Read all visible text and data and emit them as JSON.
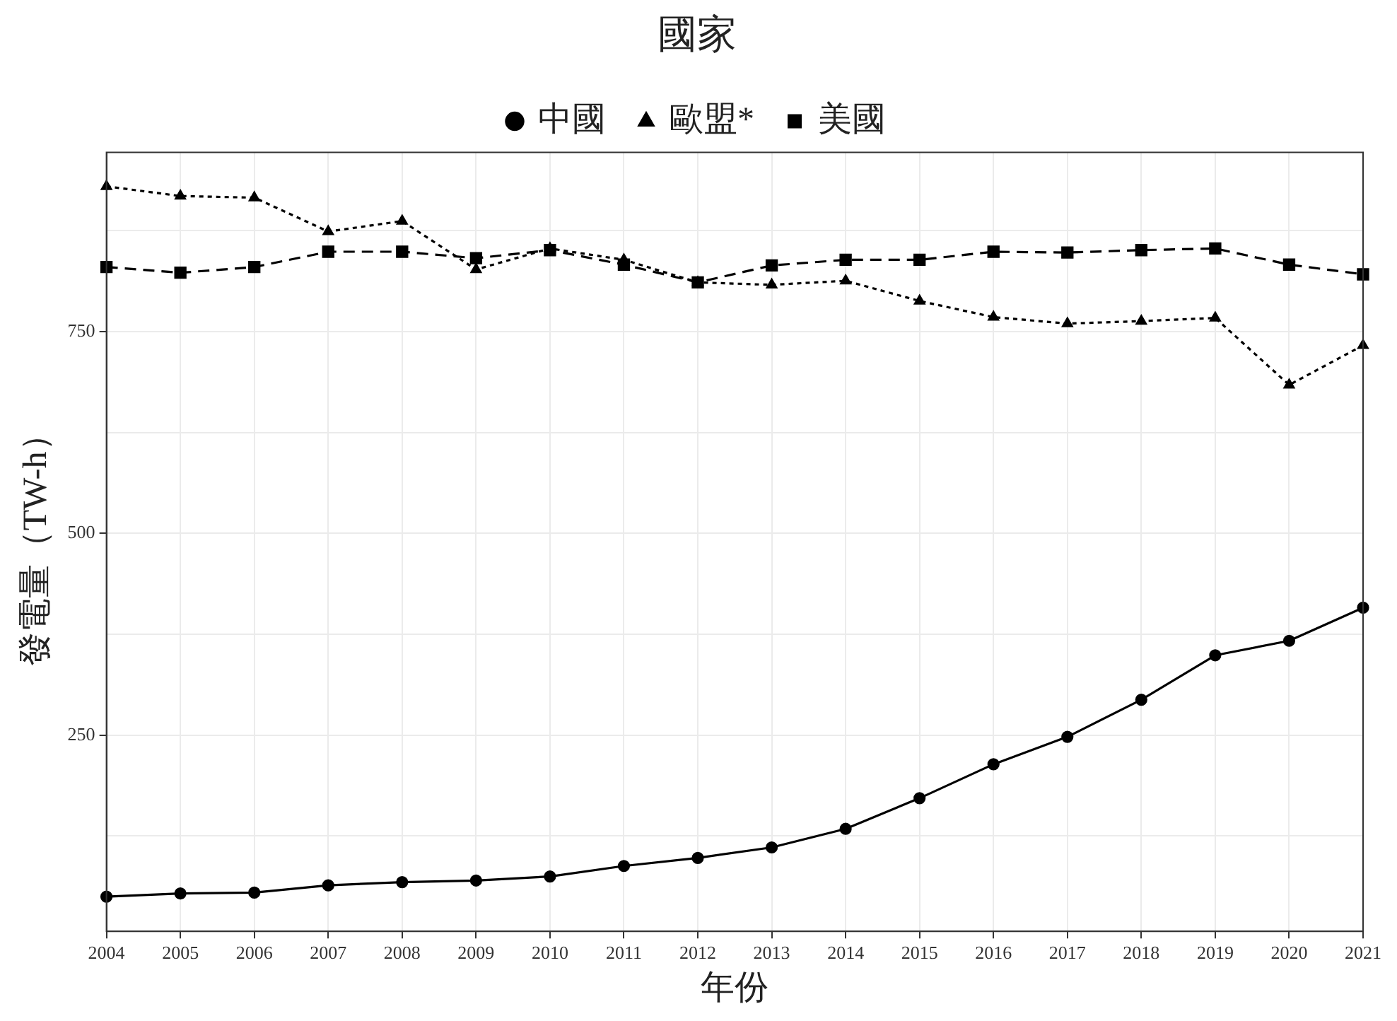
{
  "chart_data": {
    "type": "line",
    "legend_title": "國家",
    "xlabel": "年份",
    "ylabel": "發電量（TW-h）",
    "categories": [
      "2004",
      "2005",
      "2006",
      "2007",
      "2008",
      "2009",
      "2010",
      "2011",
      "2012",
      "2013",
      "2014",
      "2015",
      "2016",
      "2017",
      "2018",
      "2019",
      "2020",
      "2021"
    ],
    "series": [
      {
        "name": "中國",
        "color": "#000000",
        "marker": "circle",
        "line_style": "solid",
        "values": [
          50,
          54,
          55,
          64,
          68,
          70,
          75,
          88,
          98,
          111,
          134,
          172,
          214,
          248,
          294,
          349,
          367,
          408
        ]
      },
      {
        "name": "歐盟*",
        "color": "#000000",
        "marker": "triangle",
        "line_style": "dotted",
        "values": [
          930,
          918,
          916,
          874,
          887,
          827,
          853,
          839,
          811,
          808,
          813,
          788,
          768,
          760,
          763,
          767,
          684,
          733
        ]
      },
      {
        "name": "美國",
        "color": "#000000",
        "marker": "square",
        "line_style": "dashed",
        "values": [
          830,
          823,
          830,
          849,
          849,
          841,
          851,
          833,
          811,
          832,
          839,
          839,
          849,
          848,
          851,
          853,
          833,
          821
        ]
      }
    ],
    "ylim": [
      7,
      972
    ],
    "yticks": [
      {
        "value": 125,
        "label": null
      },
      250,
      {
        "value": 375,
        "label": null
      },
      500,
      {
        "value": 625,
        "label": null
      },
      750,
      {
        "value": 875,
        "label": null
      }
    ],
    "grid": true,
    "legend": "top"
  }
}
